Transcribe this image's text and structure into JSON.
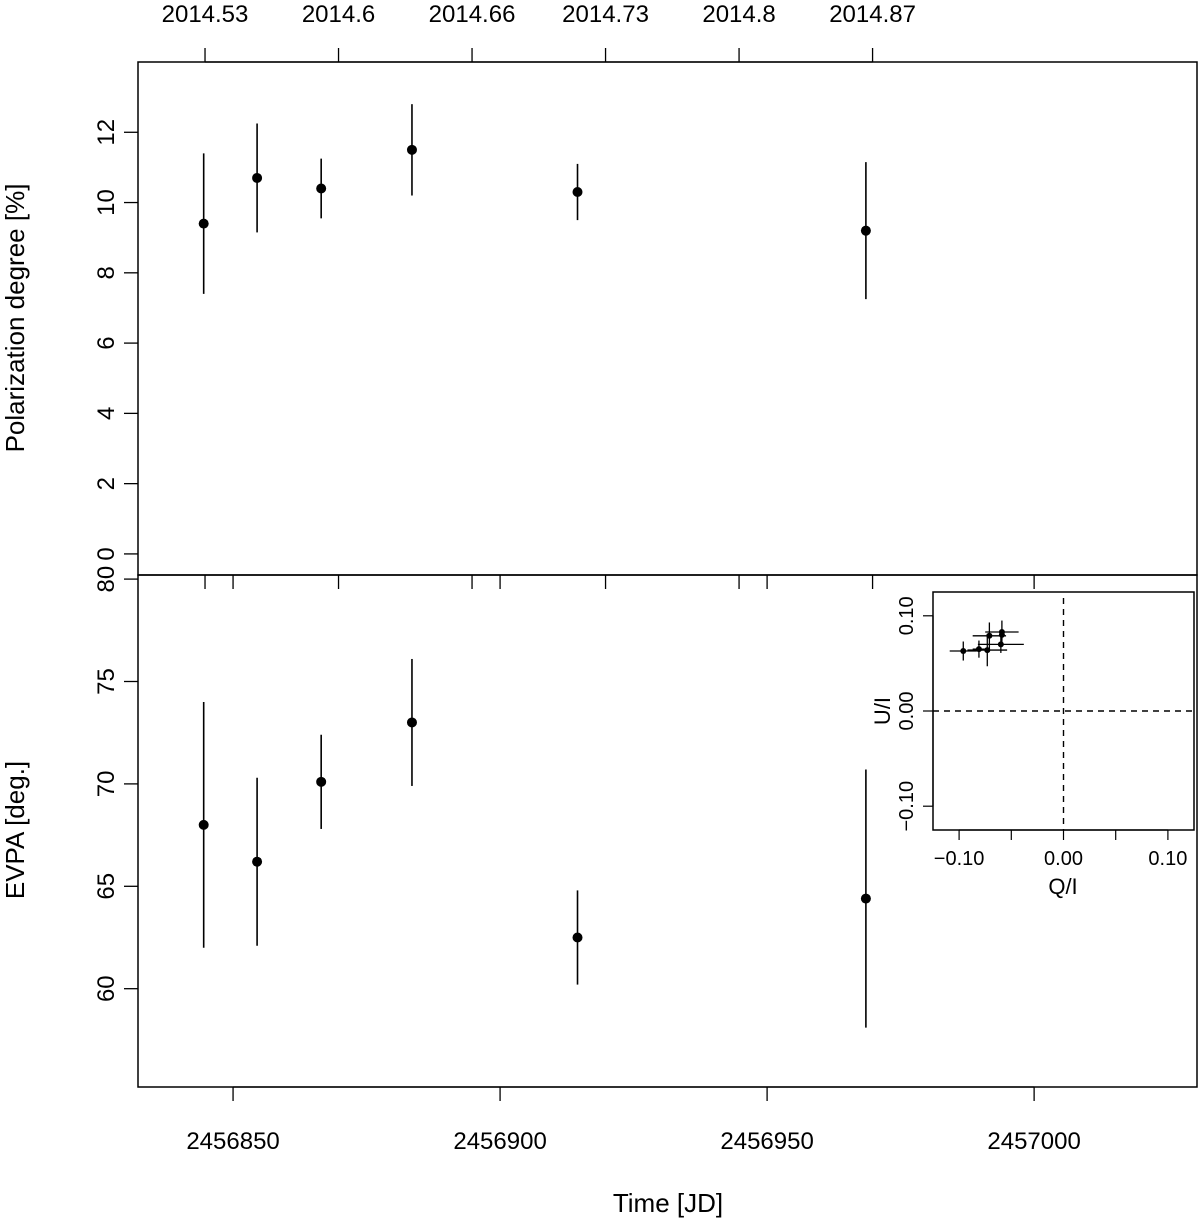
{
  "chart_data": [
    {
      "type": "scatter",
      "name_key": "polarization-degree",
      "xlabel": "",
      "ylabel": "Polarization degree [%]",
      "top_axis_ticks": [
        {
          "jd": 2456844.75,
          "label": "2014.53"
        },
        {
          "jd": 2456869.75,
          "label": "2014.6"
        },
        {
          "jd": 2456894.75,
          "label": "2014.66"
        },
        {
          "jd": 2456919.75,
          "label": "2014.73"
        },
        {
          "jd": 2456944.75,
          "label": "2014.8"
        },
        {
          "jd": 2456969.75,
          "label": "2014.87"
        }
      ],
      "xlim": [
        2456832.2,
        2457030.5
      ],
      "ylim": [
        -0.6,
        14.0
      ],
      "yticks": [
        0,
        2,
        4,
        6,
        8,
        10,
        12
      ],
      "series": [
        {
          "x": [
            2456844.5,
            2456854.5,
            2456866.5,
            2456883.5,
            2456914.5,
            2456968.5
          ],
          "y": [
            9.4,
            10.7,
            10.4,
            11.5,
            10.3,
            9.2
          ],
          "yerr": [
            2.0,
            1.55,
            0.85,
            1.3,
            0.8,
            1.95
          ]
        }
      ]
    },
    {
      "type": "scatter",
      "name_key": "evpa",
      "xlabel": "Time [JD]",
      "ylabel": "EVPA [deg.]",
      "xlim": [
        2456832.2,
        2457030.5
      ],
      "xticks": [
        2456850,
        2456900,
        2456950,
        2457000
      ],
      "xtick_labels": [
        "2456850",
        "2456900",
        "2456950",
        "2457000"
      ],
      "ylim": [
        55.2,
        80.2
      ],
      "yticks": [
        60,
        65,
        70,
        75,
        80
      ],
      "series": [
        {
          "x": [
            2456844.5,
            2456854.5,
            2456866.5,
            2456883.5,
            2456914.5,
            2456968.5
          ],
          "y": [
            68.0,
            66.2,
            70.1,
            73.0,
            62.5,
            64.4
          ],
          "yerr": [
            6.0,
            4.1,
            2.3,
            3.1,
            2.3,
            6.3
          ]
        }
      ]
    },
    {
      "type": "scatter",
      "name_key": "qu-inset",
      "xlabel": "Q/I",
      "ylabel": "U/I",
      "xlim": [
        -0.125,
        0.125
      ],
      "ylim": [
        -0.125,
        0.125
      ],
      "xticks": [
        -0.1,
        -0.05,
        0.0,
        0.05,
        0.1
      ],
      "xtick_labels": [
        "−0.10",
        "",
        "0.00",
        "",
        "0.10"
      ],
      "yticks": [
        -0.1,
        0.0,
        0.1
      ],
      "ytick_labels": [
        "−0.10",
        "0.00",
        "0.10"
      ],
      "reference_lines": {
        "x": 0.0,
        "y": 0.0,
        "style": "dashed"
      },
      "series": [
        {
          "x": [
            -0.096,
            -0.081,
            -0.073,
            -0.071,
            -0.06,
            -0.059,
            -0.059
          ],
          "y": [
            0.063,
            0.065,
            0.064,
            0.079,
            0.07,
            0.083,
            0.08
          ],
          "xerr": [
            0.013,
            0.006,
            0.019,
            0.016,
            0.022,
            0.016,
            0.0
          ],
          "yerr": [
            0.01,
            0.009,
            0.017,
            0.014,
            0.009,
            0.012,
            0.005
          ]
        }
      ]
    }
  ]
}
